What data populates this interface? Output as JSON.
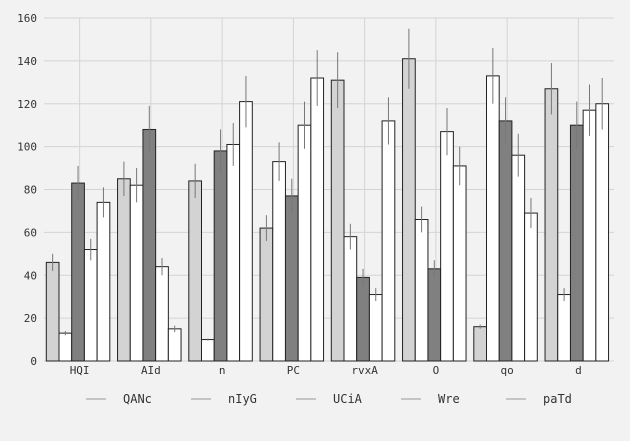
{
  "chart_data": {
    "type": "bar",
    "categories": [
      "HQI",
      "AId",
      "n",
      "PC",
      "rvxA",
      "O",
      "qo",
      "d"
    ],
    "ylim": [
      0,
      160
    ],
    "yticks": [
      0,
      20,
      40,
      60,
      80,
      100,
      120,
      140,
      160
    ],
    "grid": true,
    "legend_position": "bottom",
    "error_bars": true,
    "series": [
      {
        "name": "QANc",
        "color": "#d3d3d3",
        "values": [
          46,
          85,
          84,
          62,
          131,
          141,
          16,
          127
        ],
        "errors": [
          4,
          8,
          8,
          6,
          13,
          14,
          1,
          12
        ]
      },
      {
        "name": "nIyG",
        "color": "#ffffff",
        "values": [
          13,
          82,
          10,
          93,
          58,
          66,
          133,
          31
        ],
        "errors": [
          1,
          8,
          0.5,
          9,
          6,
          6,
          13,
          3
        ]
      },
      {
        "name": "UCiA",
        "color": "#808080",
        "values": [
          83,
          108,
          98,
          77,
          39,
          43,
          112,
          110
        ],
        "errors": [
          8,
          11,
          10,
          8,
          4,
          4,
          11,
          11
        ]
      },
      {
        "name": "Wre",
        "color": "#ffffff",
        "values": [
          52,
          44,
          101,
          110,
          31,
          107,
          96,
          117
        ],
        "errors": [
          5,
          4,
          10,
          11,
          3,
          11,
          10,
          12
        ]
      },
      {
        "name": "paTd",
        "color": "#ffffff",
        "values": [
          74,
          15,
          121,
          132,
          112,
          91,
          69,
          120
        ],
        "errors": [
          7,
          1.5,
          12,
          13,
          11,
          9,
          7,
          12
        ]
      }
    ]
  }
}
